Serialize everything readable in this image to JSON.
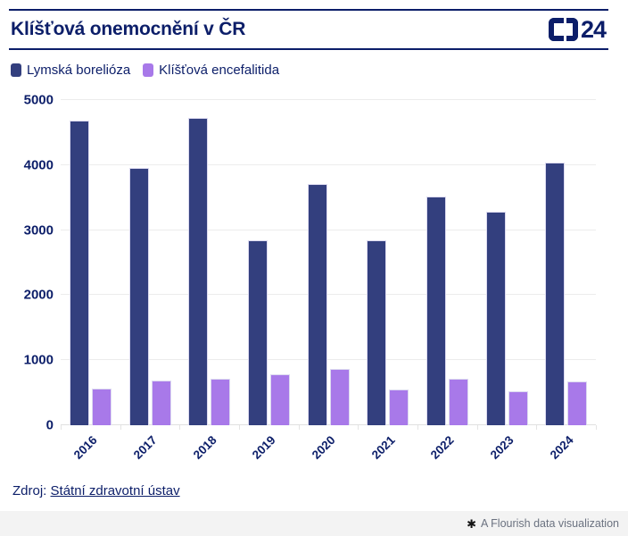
{
  "header": {
    "title": "Klíšťová onemocnění v ČR",
    "logo_number": "24"
  },
  "legend": {
    "items": [
      {
        "label": "Lymská borelióza",
        "color": "#333f7e"
      },
      {
        "label": "Klíšťová encefalitida",
        "color": "#a879e9"
      }
    ]
  },
  "chart_data": {
    "type": "bar",
    "title": "Klíšťová onemocnění v ČR",
    "categories": [
      "2016",
      "2017",
      "2018",
      "2019",
      "2020",
      "2021",
      "2022",
      "2023",
      "2024"
    ],
    "series": [
      {
        "name": "Lymská borelióza",
        "color": "#333f7e",
        "values": [
          4690,
          3950,
          4720,
          2840,
          3710,
          2840,
          3520,
          3280,
          4040
        ]
      },
      {
        "name": "Klíšťová encefalitida",
        "color": "#a879e9",
        "values": [
          570,
          690,
          715,
          780,
          860,
          555,
          720,
          520,
          680
        ]
      }
    ],
    "xlabel": "",
    "ylabel": "",
    "ylim": [
      0,
      5000
    ],
    "yticks": [
      0,
      1000,
      2000,
      3000,
      4000,
      5000
    ],
    "grid": true,
    "legend_position": "top-left"
  },
  "source": {
    "prefix": "Zdroj: ",
    "link_text": "Státní zdravotní ústav"
  },
  "footer": {
    "attribution": "A Flourish data visualization",
    "icon_glyph": "✱"
  },
  "colors": {
    "accent_navy": "#0c1e69",
    "series_1": "#333f7e",
    "series_2": "#a879e9",
    "gridline": "#ececec",
    "footer_bg": "#f3f3f3",
    "footer_text": "#6b7280"
  }
}
